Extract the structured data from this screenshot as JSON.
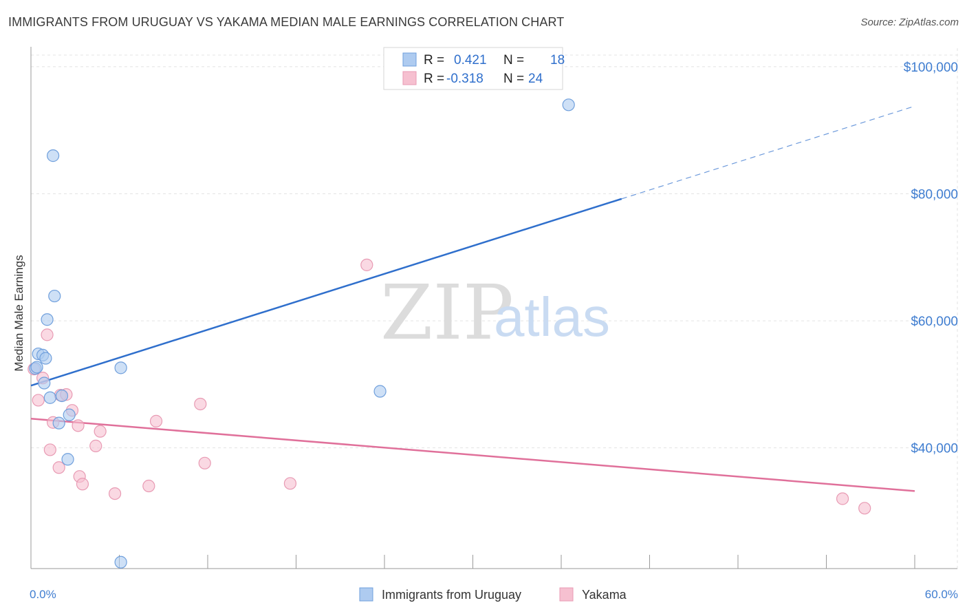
{
  "header": {
    "title": "IMMIGRANTS FROM URUGUAY VS YAKAMA MEDIAN MALE EARNINGS CORRELATION CHART",
    "source": "Source: ZipAtlas.com"
  },
  "watermark": {
    "zip": "ZIP",
    "atlas": "atlas"
  },
  "legend": {
    "rows": [
      {
        "r_label": "R =",
        "r_value": "0.421",
        "n_label": "N =",
        "n_value": "18"
      },
      {
        "r_label": "R =",
        "r_value": "-0.318",
        "n_label": "N =",
        "n_value": "24"
      }
    ]
  },
  "bottom_legend": {
    "items": [
      "Immigrants from Uruguay",
      "Yakama"
    ]
  },
  "colors": {
    "blue_fill": "#aecbf0",
    "blue_stroke": "#6f9fdc",
    "blue_line": "#2f6fcc",
    "pink_fill": "#f6c0d0",
    "pink_stroke": "#e89ab3",
    "pink_line": "#e0709a",
    "grid": "#e3e3e3",
    "tick_text": "#3f7dd0"
  },
  "chart_data": {
    "type": "scatter",
    "title": "IMMIGRANTS FROM URUGUAY VS YAKAMA MEDIAN MALE EARNINGS CORRELATION CHART",
    "xlabel": "",
    "ylabel": "Median Male Earnings",
    "xlim": [
      0,
      60
    ],
    "ylim": [
      21000,
      104000
    ],
    "x_tick_labels": [
      "0.0%",
      "60.0%"
    ],
    "y_ticks": [
      40000,
      60000,
      80000,
      100000
    ],
    "y_tick_labels": [
      "$40,000",
      "$60,000",
      "$80,000",
      "$100,000"
    ],
    "grid": true,
    "legend_position": "top-center",
    "series": [
      {
        "name": "Immigrants from Uruguay",
        "r": 0.421,
        "n": 18,
        "points": [
          [
            0.3,
            52500
          ],
          [
            0.4,
            52700
          ],
          [
            0.5,
            54800
          ],
          [
            0.8,
            54600
          ],
          [
            0.9,
            50200
          ],
          [
            1.0,
            54100
          ],
          [
            1.1,
            60200
          ],
          [
            1.3,
            47900
          ],
          [
            1.5,
            86000
          ],
          [
            1.6,
            63900
          ],
          [
            1.9,
            43900
          ],
          [
            2.1,
            48200
          ],
          [
            2.5,
            38200
          ],
          [
            2.6,
            45200
          ],
          [
            6.1,
            22000
          ],
          [
            6.1,
            52600
          ],
          [
            23.7,
            48900
          ],
          [
            36.5,
            94000
          ]
        ],
        "trend": {
          "x": [
            0,
            40.1
          ],
          "y": [
            49800,
            79200
          ]
        },
        "trend_dashed": {
          "x": [
            40.1,
            60
          ],
          "y": [
            79200,
            93800
          ]
        }
      },
      {
        "name": "Yakama",
        "r": -0.318,
        "n": 24,
        "points": [
          [
            0.2,
            52400
          ],
          [
            0.5,
            47500
          ],
          [
            0.8,
            51000
          ],
          [
            1.1,
            57800
          ],
          [
            1.3,
            39700
          ],
          [
            1.5,
            44000
          ],
          [
            1.9,
            36900
          ],
          [
            2.0,
            48300
          ],
          [
            2.4,
            48400
          ],
          [
            2.8,
            45900
          ],
          [
            3.2,
            43500
          ],
          [
            3.3,
            35500
          ],
          [
            3.5,
            34300
          ],
          [
            4.4,
            40300
          ],
          [
            4.7,
            42600
          ],
          [
            5.7,
            32800
          ],
          [
            8.0,
            34000
          ],
          [
            8.5,
            44200
          ],
          [
            11.5,
            46900
          ],
          [
            11.8,
            37600
          ],
          [
            17.6,
            34400
          ],
          [
            22.8,
            68800
          ],
          [
            55.1,
            32000
          ],
          [
            56.6,
            30500
          ]
        ],
        "trend": {
          "x": [
            0,
            60
          ],
          "y": [
            44600,
            33200
          ]
        }
      }
    ]
  }
}
